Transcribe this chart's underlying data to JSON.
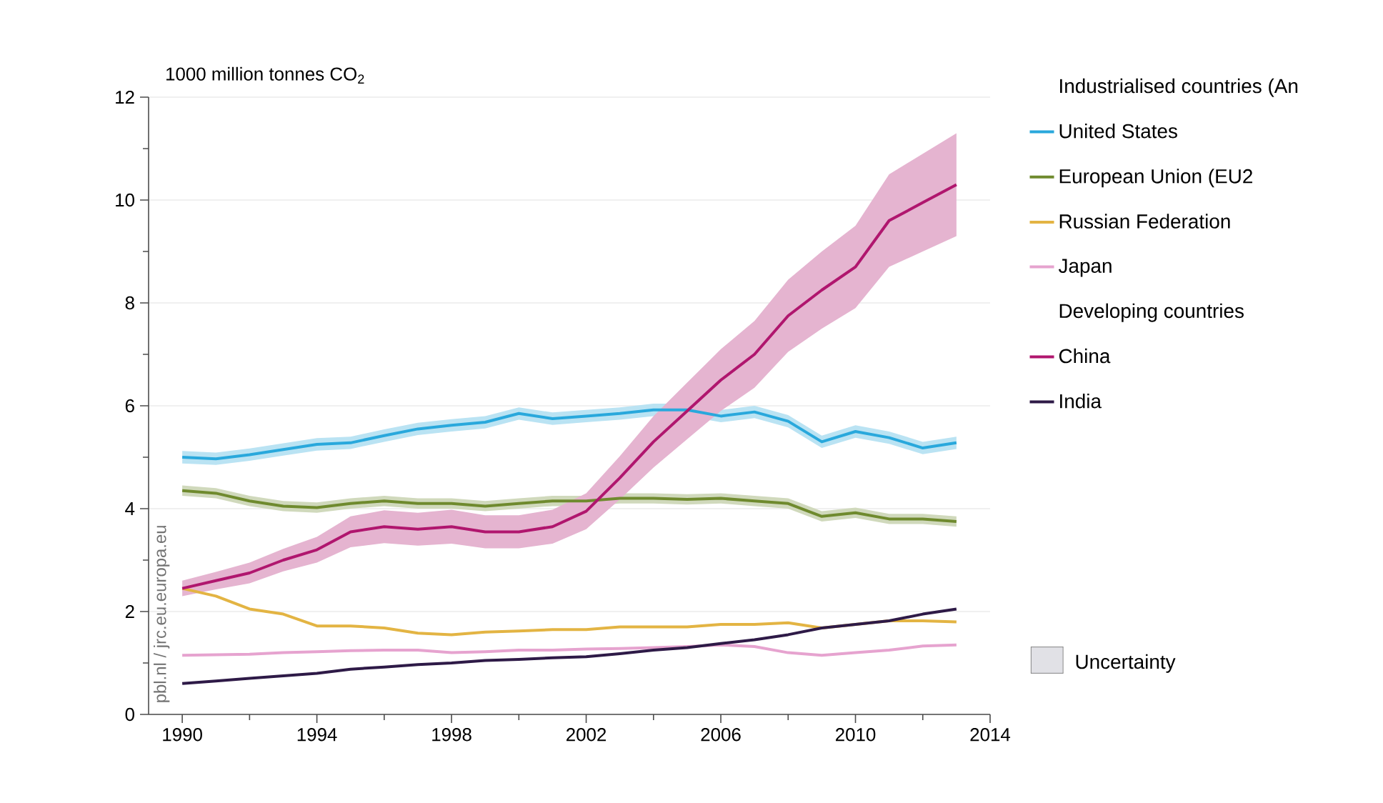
{
  "chart_data": {
    "type": "line",
    "ylabel": "1000 million tonnes CO$_{2}$",
    "legend_title": "Industrialised countries (An",
    "annotations": [
      "Developing countries",
      "Uncertainty",
      "pbl.nl / jrc.eu.europa.eu"
    ],
    "x": [
      1990,
      1991,
      1992,
      1993,
      1994,
      1995,
      1996,
      1997,
      1998,
      1999,
      2000,
      2001,
      2002,
      2003,
      2004,
      2005,
      2006,
      2007,
      2008,
      2009,
      2010,
      2011,
      2012,
      2013
    ],
    "series": [
      {
        "name": "United States",
        "color": "#29a8dc",
        "values": [
          5.0,
          4.97,
          5.05,
          5.15,
          5.25,
          5.28,
          5.42,
          5.55,
          5.62,
          5.68,
          5.85,
          5.75,
          5.8,
          5.85,
          5.92,
          5.92,
          5.8,
          5.88,
          5.7,
          5.3,
          5.5,
          5.38,
          5.18,
          5.28
        ],
        "upper": [
          5.12,
          5.09,
          5.17,
          5.27,
          5.37,
          5.4,
          5.54,
          5.67,
          5.74,
          5.8,
          5.97,
          5.87,
          5.92,
          5.97,
          6.04,
          6.04,
          5.92,
          6.0,
          5.82,
          5.42,
          5.62,
          5.5,
          5.3,
          5.4
        ],
        "lower": [
          4.88,
          4.85,
          4.93,
          5.03,
          5.13,
          5.16,
          5.3,
          5.43,
          5.5,
          5.56,
          5.73,
          5.63,
          5.68,
          5.73,
          5.8,
          5.8,
          5.68,
          5.76,
          5.58,
          5.18,
          5.38,
          5.26,
          5.06,
          5.16
        ]
      },
      {
        "name": "European Union (EU2",
        "color": "#6f8a2e",
        "values": [
          4.35,
          4.3,
          4.15,
          4.05,
          4.02,
          4.1,
          4.15,
          4.1,
          4.1,
          4.05,
          4.1,
          4.15,
          4.15,
          4.2,
          4.2,
          4.18,
          4.2,
          4.15,
          4.1,
          3.85,
          3.92,
          3.8,
          3.8,
          3.75
        ],
        "upper": [
          4.45,
          4.4,
          4.25,
          4.15,
          4.12,
          4.2,
          4.25,
          4.2,
          4.2,
          4.15,
          4.2,
          4.25,
          4.25,
          4.3,
          4.3,
          4.28,
          4.3,
          4.25,
          4.2,
          3.95,
          4.02,
          3.9,
          3.9,
          3.85
        ],
        "lower": [
          4.25,
          4.2,
          4.05,
          3.95,
          3.92,
          4.0,
          4.05,
          4.0,
          4.0,
          3.95,
          4.0,
          4.05,
          4.05,
          4.1,
          4.1,
          4.08,
          4.1,
          4.05,
          4.0,
          3.75,
          3.82,
          3.7,
          3.7,
          3.65
        ]
      },
      {
        "name": "Russian Federation",
        "color": "#e3b443",
        "values": [
          2.45,
          2.3,
          2.05,
          1.95,
          1.72,
          1.72,
          1.68,
          1.58,
          1.55,
          1.6,
          1.62,
          1.65,
          1.65,
          1.7,
          1.7,
          1.7,
          1.75,
          1.75,
          1.78,
          1.68,
          1.75,
          1.82,
          1.82,
          1.8
        ]
      },
      {
        "name": "Japan",
        "color": "#e6a3cf",
        "values": [
          1.15,
          1.16,
          1.17,
          1.2,
          1.22,
          1.24,
          1.25,
          1.25,
          1.2,
          1.22,
          1.25,
          1.25,
          1.27,
          1.28,
          1.3,
          1.32,
          1.35,
          1.32,
          1.2,
          1.15,
          1.2,
          1.25,
          1.33,
          1.35
        ]
      },
      {
        "name": "China",
        "color": "#b0166e",
        "values": [
          2.45,
          2.6,
          2.75,
          3.0,
          3.2,
          3.55,
          3.65,
          3.6,
          3.65,
          3.55,
          3.55,
          3.65,
          3.95,
          4.6,
          5.3,
          5.9,
          6.5,
          7.0,
          7.75,
          8.25,
          8.7,
          9.6,
          9.95,
          10.3
        ],
        "upper": [
          2.6,
          2.77,
          2.95,
          3.22,
          3.45,
          3.85,
          3.97,
          3.92,
          3.98,
          3.87,
          3.87,
          3.98,
          4.3,
          5.02,
          5.8,
          6.45,
          7.1,
          7.65,
          8.45,
          9.0,
          9.5,
          10.5,
          10.9,
          11.3
        ],
        "lower": [
          2.3,
          2.43,
          2.55,
          2.78,
          2.95,
          3.25,
          3.33,
          3.28,
          3.32,
          3.23,
          3.23,
          3.32,
          3.6,
          4.18,
          4.8,
          5.35,
          5.9,
          6.35,
          7.05,
          7.5,
          7.9,
          8.7,
          9.0,
          9.3
        ]
      },
      {
        "name": "India",
        "color": "#2e1a47",
        "values": [
          0.6,
          0.65,
          0.7,
          0.75,
          0.8,
          0.88,
          0.92,
          0.97,
          1.0,
          1.05,
          1.07,
          1.1,
          1.12,
          1.18,
          1.25,
          1.3,
          1.38,
          1.45,
          1.55,
          1.68,
          1.75,
          1.82,
          1.95,
          2.05
        ]
      }
    ],
    "xlim": [
      1989,
      2014
    ],
    "xticks": [
      1990,
      1994,
      1998,
      2002,
      2006,
      2010,
      2014
    ],
    "ylim": [
      0,
      12
    ],
    "yticks": [
      0,
      2,
      4,
      6,
      8,
      10,
      12
    ],
    "grid": "y",
    "legend": "right",
    "marker": "none",
    "line_style": "solid"
  }
}
